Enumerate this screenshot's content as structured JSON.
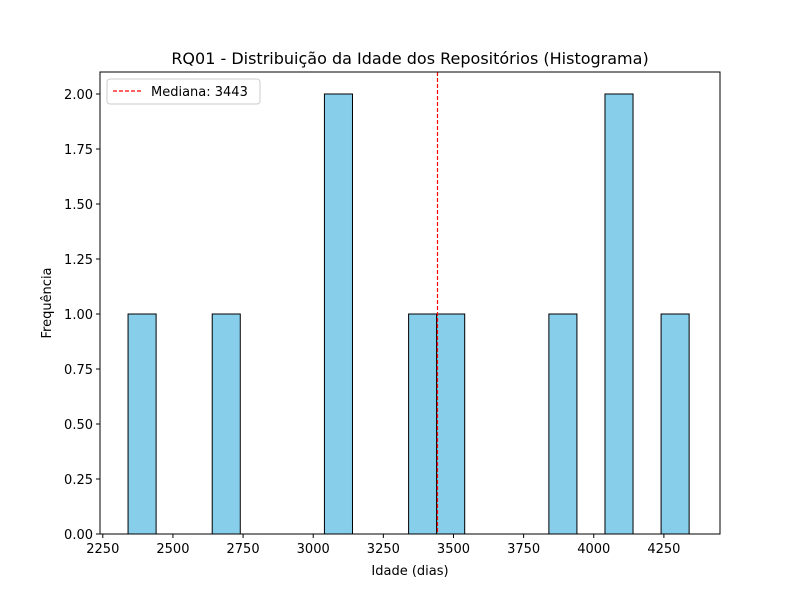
{
  "chart_data": {
    "type": "bar",
    "title": "RQ01 - Distribuição da Idade dos Repositórios (Histograma)",
    "xlabel": "Idade (dias)",
    "ylabel": "Frequência",
    "xlim": [
      2240,
      4450
    ],
    "ylim": [
      0,
      2.1
    ],
    "x_ticks": [
      2250,
      2500,
      2750,
      3000,
      3250,
      3500,
      3750,
      4000,
      4250
    ],
    "x_tick_labels": [
      "2250",
      "2500",
      "2750",
      "3000",
      "3250",
      "3500",
      "3750",
      "4000",
      "4250"
    ],
    "y_ticks": [
      0,
      0.25,
      0.5,
      0.75,
      1.0,
      1.25,
      1.5,
      1.75,
      2.0
    ],
    "y_tick_labels": [
      "0.00",
      "0.25",
      "0.50",
      "0.75",
      "1.00",
      "1.25",
      "1.50",
      "1.75",
      "2.00"
    ],
    "bin_width": 100,
    "bins": [
      {
        "start": 2340,
        "end": 2440,
        "count": 1
      },
      {
        "start": 2640,
        "end": 2740,
        "count": 1
      },
      {
        "start": 3040,
        "end": 3140,
        "count": 2
      },
      {
        "start": 3340,
        "end": 3440,
        "count": 1
      },
      {
        "start": 3440,
        "end": 3540,
        "count": 1
      },
      {
        "start": 3840,
        "end": 3940,
        "count": 1
      },
      {
        "start": 4040,
        "end": 4140,
        "count": 2
      },
      {
        "start": 4240,
        "end": 4340,
        "count": 1
      }
    ],
    "bar_color": "#87CEEB",
    "bar_edge_color": "#000000",
    "median": {
      "value": 3443,
      "label": "Mediana: 3443",
      "color": "#ff0000",
      "style": "dashed"
    },
    "legend_position": "top-left",
    "grid": false
  }
}
